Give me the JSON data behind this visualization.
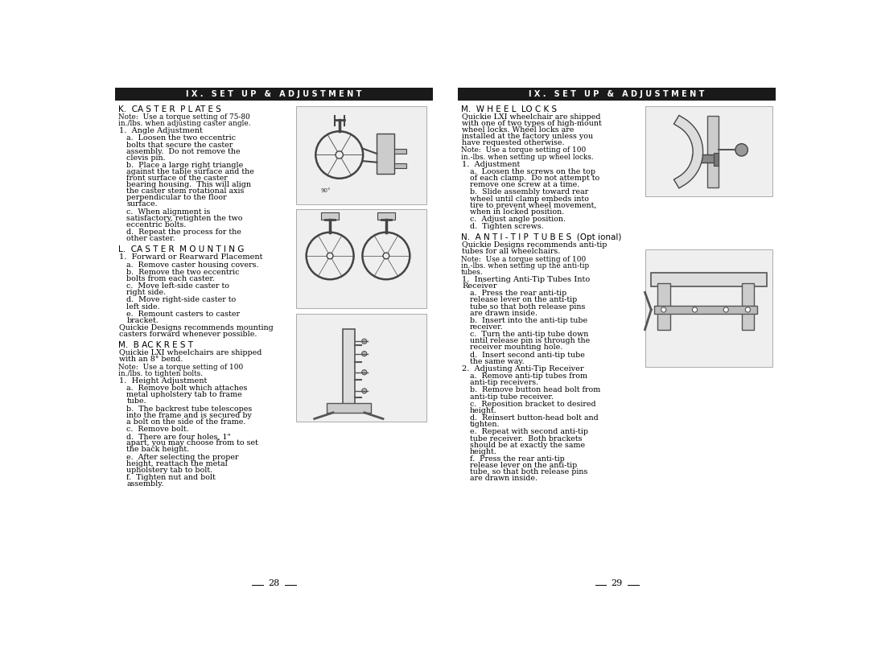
{
  "bg_color": "#ffffff",
  "header_color": "#1a1a1a",
  "header_text_color": "#ffffff",
  "header_text_left": "I X .   S E T   U P   &   A D J U S T M E N T",
  "header_text_right": "I X .   S E T   U P   &   A D J U S T M E N T",
  "page_numbers": [
    "28",
    "29"
  ],
  "left_sections": [
    {
      "heading": "K.  CA S T E R  P L AT E S",
      "items": [
        {
          "type": "note",
          "text": "Note:  Use a torque setting of 75-80 in./lbs. when adjusting caster angle."
        },
        {
          "type": "item1",
          "text": "1.  Angle Adjustment"
        },
        {
          "type": "item_a",
          "text": "a.  Loosen the two eccentric bolts that secure the caster assembly.  Do not remove the clevis pin."
        },
        {
          "type": "item_b",
          "text": "b.  Place a large right triangle against the table surface and the front surface of the caster bearing housing.  This will align the caster stem rotational axis perpendicular to the floor surface."
        },
        {
          "type": "item_c",
          "text": "c.  When alignment is satisfactory, retighten the two eccentric bolts."
        },
        {
          "type": "item_d",
          "text": "d.  Repeat the process for the other caster."
        }
      ]
    },
    {
      "heading": "L.  CA S T E R  M O U N T I N G",
      "items": [
        {
          "type": "item1",
          "text": "1.  Forward or Rearward Placement"
        },
        {
          "type": "item_a",
          "text": "a.  Remove caster housing covers."
        },
        {
          "type": "item_b",
          "text": "b.  Remove the two eccentric bolts from each caster."
        },
        {
          "type": "item_c",
          "text": "c.  Move left-side caster to right side."
        },
        {
          "type": "item_d",
          "text": "d.  Move right-side caster to left side."
        },
        {
          "type": "item_e",
          "text": "e.  Remount casters to caster bracket."
        },
        {
          "type": "body",
          "text": "Quickie Designs recommends mounting casters forward whenever possible."
        }
      ]
    },
    {
      "heading": "M.  B AC K R E S T",
      "items": [
        {
          "type": "body",
          "text": "Quickie LXI wheelchairs are shipped with an 8° bend."
        },
        {
          "type": "note",
          "text": "Note:  Use a torque setting of 100 in./lbs. to tighten bolts."
        },
        {
          "type": "item1",
          "text": "1.  Height Adjustment"
        },
        {
          "type": "item_a",
          "text": "a.  Remove bolt which attaches metal upholstery tab to frame tube."
        },
        {
          "type": "item_b",
          "text": "b.  The backrest tube telescopes into the frame and is secured by a bolt on the side of the frame."
        },
        {
          "type": "item_c",
          "text": "c.  Remove bolt."
        },
        {
          "type": "item_d",
          "text": "d.  There are four holes, 1\" apart, you may choose from to set the back height."
        },
        {
          "type": "item_e",
          "text": "e.  After selecting the proper height, reattach the metal upholstery tab to bolt."
        },
        {
          "type": "item_f",
          "text": "f.  Tighten nut and bolt assembly."
        }
      ]
    }
  ],
  "right_sections": [
    {
      "heading": "M.  W H E E L  LO C K S",
      "items": [
        {
          "type": "body",
          "text": "Quickie LXI wheelchair are shipped with one of two types of high-mount wheel locks. Wheel locks are installed at the factory unless you have requested otherwise."
        },
        {
          "type": "note",
          "text": "Note:  Use a torque setting of 100 in.-lbs. when setting up wheel locks."
        },
        {
          "type": "item1",
          "text": "1.  Adjustment"
        },
        {
          "type": "item_a",
          "text": "a.  Loosen the screws on the top of each clamp.  Do not attempt to remove one screw at a time."
        },
        {
          "type": "item_b",
          "text": "b.  Slide assembly toward rear wheel until clamp embeds into tire to prevent wheel movement, when in locked position."
        },
        {
          "type": "item_c",
          "text": "c.  Adjust angle position."
        },
        {
          "type": "item_d",
          "text": "d.  Tighten screws."
        }
      ]
    },
    {
      "heading": "N.  A N T I - T I P  T U B E S  (Opt ional)",
      "items": [
        {
          "type": "body",
          "text": "Quickie Designs recommends anti-tip tubes for all wheelchairs."
        },
        {
          "type": "note",
          "text": "Note:  Use a torque setting of 100 in.-lbs. when setting up the anti-tip tubes."
        },
        {
          "type": "item1",
          "text": "1.  Inserting Anti-Tip Tubes Into Receiver"
        },
        {
          "type": "item_a",
          "text": "a.  Press the rear anti-tip release lever on the anti-tip tube so that both release pins are drawn inside."
        },
        {
          "type": "item_b",
          "text": "b.  Insert into the anti-tip tube receiver."
        },
        {
          "type": "item_c",
          "text": "c.  Turn the anti-tip tube down until release pin is through the receiver mounting hole."
        },
        {
          "type": "item_d",
          "text": "d.  Insert second anti-tip tube the same way."
        },
        {
          "type": "item2",
          "text": "2.  Adjusting Anti-Tip Receiver"
        },
        {
          "type": "item_a",
          "text": "a.  Remove anti-tip tubes from anti-tip receivers."
        },
        {
          "type": "item_b",
          "text": "b.  Remove button head bolt from anti-tip tube receiver."
        },
        {
          "type": "item_c",
          "text": "c.  Reposition bracket to desired height."
        },
        {
          "type": "item_d",
          "text": "d.  Reinsert button-head bolt and tighten."
        },
        {
          "type": "item_e",
          "text": "e.  Repeat with second anti-tip tube receiver.  Both brackets should be at exactly the same height."
        },
        {
          "type": "item_f",
          "text": "f.  Press the rear anti-tip release lever on the anti-tip tube, so that both release pins are drawn inside."
        }
      ]
    }
  ]
}
